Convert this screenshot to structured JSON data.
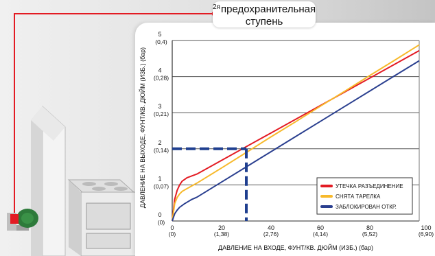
{
  "callout": {
    "sup": "2я",
    "line1": "предохранительная",
    "line2": "ступень"
  },
  "colors": {
    "pipe": "#e31b23",
    "regulator": "#2d7a3a",
    "grid": "#555555",
    "dashed_guide": "#1f3f8f"
  },
  "icons": [
    "gas-pipe",
    "regulator-valve",
    "house-wall",
    "gas-stove",
    "callout-dot"
  ],
  "chart_data": {
    "type": "line",
    "ylabel": "ДАВЛЕНИЕ НА ВЫХОДЕ, ФУНТ/КВ. ДЮЙМ (ИЗБ.) (бар)",
    "xlabel": "ДАВЛЕНИЕ НА ВХОДЕ, ФУНТ/КВ. ДЮЙМ (ИЗБ.) (бар)",
    "xlim": [
      0,
      100
    ],
    "ylim": [
      0,
      5
    ],
    "grid": "horizontal",
    "legend_position": "bottom-right",
    "x_ticks": [
      {
        "value": 0,
        "label": "0",
        "sub": "(0)"
      },
      {
        "value": 20,
        "label": "20",
        "sub": "(1,38)"
      },
      {
        "value": 40,
        "label": "40",
        "sub": "(2,76)"
      },
      {
        "value": 60,
        "label": "60",
        "sub": "(4,14)"
      },
      {
        "value": 80,
        "label": "80",
        "sub": "(5,52)"
      },
      {
        "value": 100,
        "label": "100",
        "sub": "(6,90)"
      }
    ],
    "y_ticks": [
      {
        "value": 0,
        "label": "0",
        "sub": "(0)"
      },
      {
        "value": 1,
        "label": "1",
        "sub": "(0,07)"
      },
      {
        "value": 2,
        "label": "2",
        "sub": "(0,14)"
      },
      {
        "value": 3,
        "label": "3",
        "sub": "(0,21)"
      },
      {
        "value": 4,
        "label": "4",
        "sub": "(0,28)"
      },
      {
        "value": 5,
        "label": "5",
        "sub": "(0,4)"
      }
    ],
    "series": [
      {
        "name": "УТЕЧКА РАЗЪЕДИНЕНИЕ",
        "color": "#e31b23",
        "x": [
          0,
          1,
          2,
          3,
          4,
          6,
          10,
          20,
          30,
          40,
          50,
          60,
          70,
          80,
          90,
          100
        ],
        "y": [
          0,
          0.6,
          0.85,
          1.0,
          1.1,
          1.2,
          1.3,
          1.68,
          2.06,
          2.44,
          2.82,
          3.2,
          3.58,
          3.96,
          4.34,
          4.72
        ]
      },
      {
        "name": "СНЯТА ТАРЕЛКА",
        "color": "#f7b92b",
        "x": [
          0,
          1,
          2,
          3,
          4,
          6,
          10,
          20,
          30,
          40,
          50,
          60,
          70,
          80,
          90,
          100
        ],
        "y": [
          0,
          0.48,
          0.65,
          0.75,
          0.82,
          0.9,
          1.05,
          1.47,
          1.9,
          2.33,
          2.75,
          3.18,
          3.6,
          4.03,
          4.45,
          4.88
        ]
      },
      {
        "name": "ЗАБЛОКИРОВАН ОТКР.",
        "color": "#2a3f8f",
        "x": [
          0,
          1,
          2,
          3,
          5,
          8,
          10,
          20,
          30,
          40,
          50,
          60,
          70,
          80,
          90,
          100
        ],
        "y": [
          0,
          0.2,
          0.3,
          0.38,
          0.48,
          0.6,
          0.66,
          1.08,
          1.5,
          1.92,
          2.34,
          2.76,
          3.18,
          3.6,
          4.02,
          4.44
        ]
      }
    ],
    "annotation": {
      "x": 30,
      "y": 2
    }
  }
}
